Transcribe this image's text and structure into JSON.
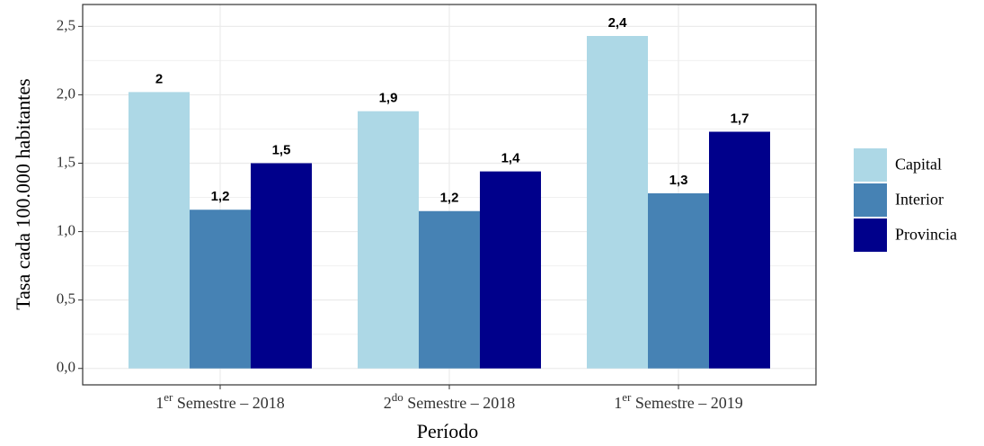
{
  "chart_data": {
    "type": "bar",
    "categories": [
      "1er Semestre – 2018",
      "2do Semestre – 2018",
      "1er Semestre – 2019"
    ],
    "series": [
      {
        "name": "Capital",
        "color": "#add8e6",
        "values": [
          2.02,
          1.88,
          2.43
        ],
        "value_labels": [
          "2",
          "1,9",
          "2,4"
        ]
      },
      {
        "name": "Interior",
        "color": "#4682b4",
        "values": [
          1.16,
          1.15,
          1.28
        ],
        "value_labels": [
          "1,2",
          "1,2",
          "1,3"
        ]
      },
      {
        "name": "Provincia",
        "color": "#00008b",
        "values": [
          1.5,
          1.44,
          1.73
        ],
        "value_labels": [
          "1,5",
          "1,4",
          "1,7"
        ]
      }
    ],
    "xlabel": "Período",
    "ylabel": "Tasa cada 100.000 habitantes",
    "ylim": [
      -0.12,
      2.66
    ],
    "yticks": [
      {
        "value": 0,
        "label": "0,0"
      },
      {
        "value": 0.5,
        "label": "0,5"
      },
      {
        "value": 1,
        "label": "1,0"
      },
      {
        "value": 1.5,
        "label": "1,5"
      },
      {
        "value": 2,
        "label": "2,0"
      },
      {
        "value": 2.5,
        "label": "2,5"
      }
    ],
    "grid": true,
    "legend": "right"
  }
}
